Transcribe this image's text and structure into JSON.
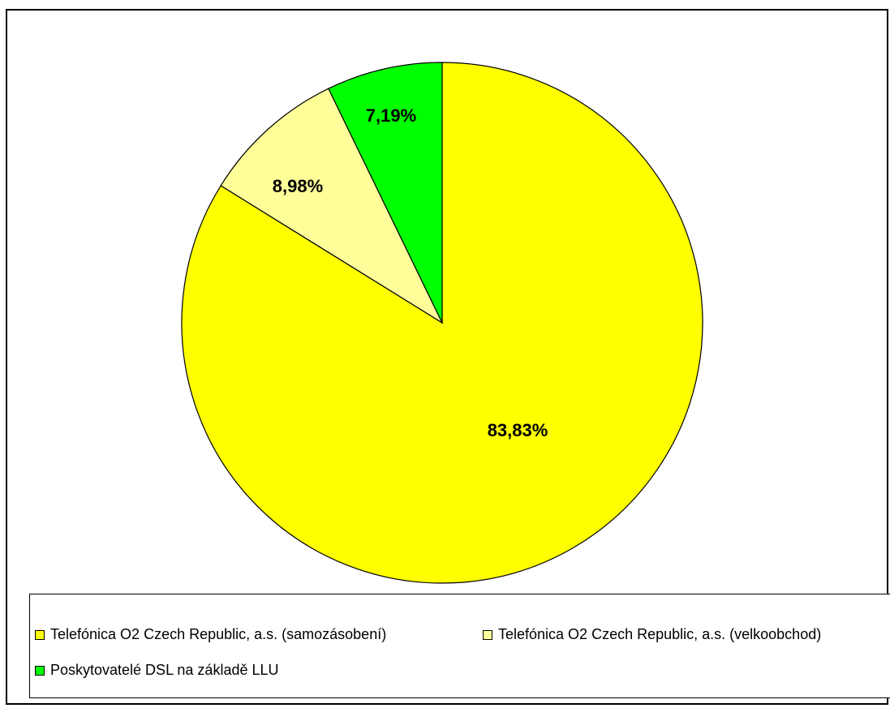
{
  "chart_data": {
    "type": "pie",
    "title": "",
    "start_angle_deg": 0,
    "direction": "clockwise",
    "slices": [
      {
        "name": "Telefónica O2 Czech Republic, a.s. (samozásobení)",
        "value": 83.83,
        "label": "83,83%",
        "color": "#ffff00"
      },
      {
        "name": "Telefónica O2 Czech Republic, a.s. (velkoobchod)",
        "value": 8.98,
        "label": "8,98%",
        "color": "#ffff99"
      },
      {
        "name": "Poskytovatelé DSL na základě LLU",
        "value": 7.19,
        "label": "7,19%",
        "color": "#00ff00"
      }
    ],
    "legend": {
      "placement": "bottom",
      "entries": [
        "Telefónica O2 Czech Republic, a.s. (samozásobení)",
        "Telefónica O2 Czech Republic, a.s. (velkoobchod)",
        "Poskytovatelé DSL na základě LLU"
      ]
    }
  }
}
